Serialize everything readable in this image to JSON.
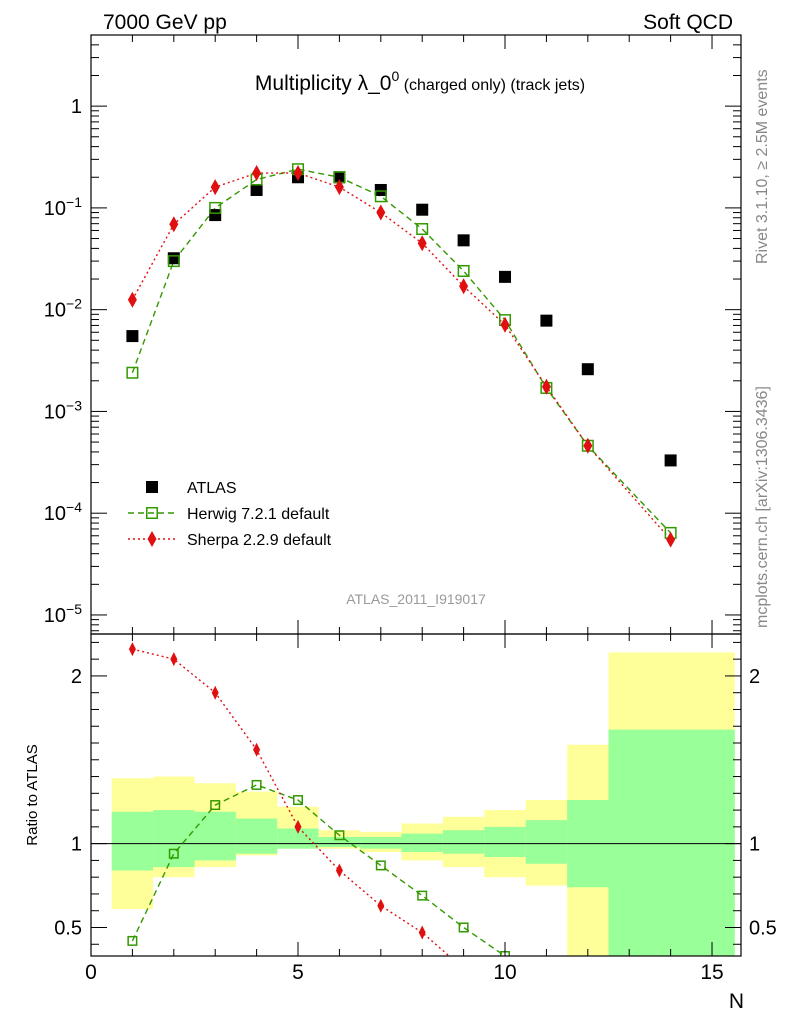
{
  "header": {
    "left": "7000 GeV pp",
    "right": "Soft QCD",
    "title_main": "Multiplicity λ_0",
    "title_sup": "0",
    "title_small": " (charged only) (track jets)"
  },
  "side": {
    "rivet": "Rivet 3.1.10, ≥ 2.5M events",
    "source": "mcplots.cern.ch [arXiv:1306.3436]"
  },
  "watermark": "ATLAS_2011_I919017",
  "chart_data": [
    {
      "type": "scatter",
      "panel": "main",
      "yscale": "log",
      "xlim": [
        0,
        15.7
      ],
      "ylim": [
        6.5e-06,
        5.0
      ],
      "yticks": [
        {
          "value": 1e-05,
          "label": "10",
          "exp": "−5"
        },
        {
          "value": 0.0001,
          "label": "10",
          "exp": "−4"
        },
        {
          "value": 0.001,
          "label": "10",
          "exp": "−3"
        },
        {
          "value": 0.01,
          "label": "10",
          "exp": "−2"
        },
        {
          "value": 0.1,
          "label": "10",
          "exp": "−1"
        },
        {
          "value": 1,
          "label": "1",
          "exp": ""
        }
      ],
      "legend_position": "bottom-left",
      "series": [
        {
          "name": "ATLAS",
          "color": "#000000",
          "marker": "square-filled",
          "x": [
            1,
            2,
            3,
            4,
            5,
            6,
            7,
            8,
            9,
            10,
            11,
            12,
            14
          ],
          "y": [
            0.0055,
            0.032,
            0.085,
            0.15,
            0.2,
            0.2,
            0.15,
            0.096,
            0.048,
            0.021,
            0.0078,
            0.0026,
            0.00033
          ]
        },
        {
          "name": "Herwig 7.2.1 default",
          "color": "#339900",
          "marker": "square-open",
          "line": "dashed",
          "x": [
            1,
            2,
            3,
            4,
            5,
            6,
            7,
            8,
            9,
            10,
            11,
            12,
            14
          ],
          "y": [
            0.0024,
            0.03,
            0.1,
            0.19,
            0.24,
            0.2,
            0.13,
            0.062,
            0.024,
            0.0079,
            0.0017,
            0.00046,
            6.4e-05
          ]
        },
        {
          "name": "Sherpa 2.2.9 default",
          "color": "#e01010",
          "marker": "diamond-filled",
          "line": "dotted",
          "x": [
            1,
            2,
            3,
            4,
            5,
            6,
            7,
            8,
            9,
            10,
            11,
            12,
            14
          ],
          "y": [
            0.0125,
            0.069,
            0.16,
            0.22,
            0.22,
            0.16,
            0.09,
            0.045,
            0.017,
            0.0071,
            0.00175,
            0.00046,
            5.5e-05
          ]
        }
      ]
    },
    {
      "type": "line",
      "panel": "ratio",
      "ylabel": "Ratio to ATLAS",
      "xlabel": "N",
      "xlim": [
        0,
        15.7
      ],
      "ylim": [
        0.33,
        2.25
      ],
      "xticks": [
        0,
        5,
        10,
        15
      ],
      "yticks": [
        0.5,
        1,
        2
      ],
      "bands": [
        {
          "x_low": 0.5,
          "x_high": 1.5,
          "stat_low": 0.84,
          "stat_high": 1.19,
          "tot_low": 0.61,
          "tot_high": 1.39
        },
        {
          "x_low": 1.5,
          "x_high": 2.5,
          "stat_low": 0.86,
          "stat_high": 1.2,
          "tot_low": 0.8,
          "tot_high": 1.4
        },
        {
          "x_low": 2.5,
          "x_high": 3.5,
          "stat_low": 0.9,
          "stat_high": 1.19,
          "tot_low": 0.86,
          "tot_high": 1.36
        },
        {
          "x_low": 3.5,
          "x_high": 4.5,
          "stat_low": 0.94,
          "stat_high": 1.15,
          "tot_low": 0.93,
          "tot_high": 1.31
        },
        {
          "x_low": 4.5,
          "x_high": 5.5,
          "stat_low": 0.97,
          "stat_high": 1.09,
          "tot_low": 0.97,
          "tot_high": 1.22
        },
        {
          "x_low": 5.5,
          "x_high": 6.5,
          "stat_low": 0.98,
          "stat_high": 1.04,
          "tot_low": 0.97,
          "tot_high": 1.08
        },
        {
          "x_low": 6.5,
          "x_high": 7.5,
          "stat_low": 0.97,
          "stat_high": 1.04,
          "tot_low": 0.95,
          "tot_high": 1.07
        },
        {
          "x_low": 7.5,
          "x_high": 8.5,
          "stat_low": 0.95,
          "stat_high": 1.06,
          "tot_low": 0.9,
          "tot_high": 1.12
        },
        {
          "x_low": 8.5,
          "x_high": 9.5,
          "stat_low": 0.94,
          "stat_high": 1.08,
          "tot_low": 0.86,
          "tot_high": 1.16
        },
        {
          "x_low": 9.5,
          "x_high": 10.5,
          "stat_low": 0.92,
          "stat_high": 1.1,
          "tot_low": 0.8,
          "tot_high": 1.2
        },
        {
          "x_low": 10.5,
          "x_high": 11.5,
          "stat_low": 0.88,
          "stat_high": 1.14,
          "tot_low": 0.75,
          "tot_high": 1.26
        },
        {
          "x_low": 11.5,
          "x_high": 12.5,
          "stat_low": 0.74,
          "stat_high": 1.26,
          "tot_low": 0.3,
          "tot_high": 1.59
        },
        {
          "x_low": 12.5,
          "x_high": 15.55,
          "stat_low": 0.3,
          "stat_high": 1.68,
          "tot_low": 0.3,
          "tot_high": 2.14
        }
      ],
      "series": [
        {
          "name": "Herwig 7.2.1 default",
          "color": "#339900",
          "marker": "square-open",
          "line": "dashed",
          "x": [
            1,
            2,
            3,
            4,
            5,
            6,
            7,
            8,
            9,
            10
          ],
          "y": [
            0.42,
            0.94,
            1.23,
            1.35,
            1.26,
            1.05,
            0.87,
            0.69,
            0.5,
            0.33
          ]
        },
        {
          "name": "Sherpa 2.2.9 default",
          "color": "#e01010",
          "marker": "diamond-filled",
          "line": "dotted",
          "x": [
            1,
            2,
            3,
            4,
            5,
            6,
            7,
            8,
            8.65
          ],
          "y": [
            2.16,
            2.1,
            1.9,
            1.56,
            1.1,
            0.84,
            0.63,
            0.47,
            0.33
          ],
          "markers_count": 8
        }
      ]
    }
  ]
}
